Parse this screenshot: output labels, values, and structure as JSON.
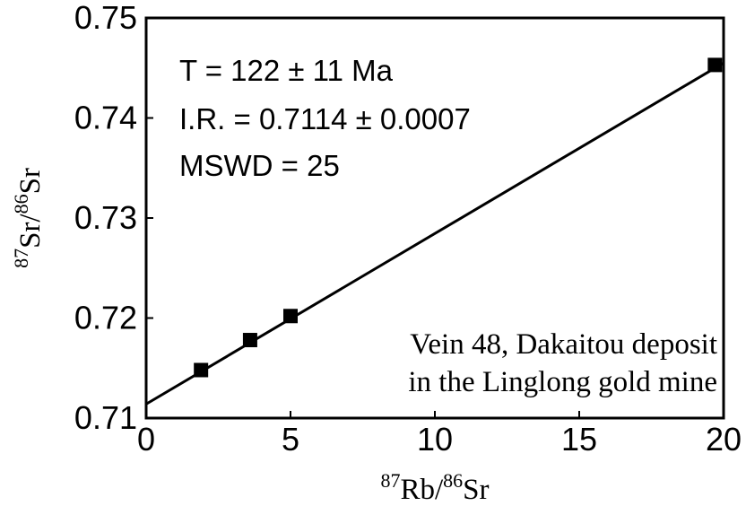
{
  "chart_data": {
    "type": "scatter",
    "xlabel": {
      "sup1": "87",
      "base1": "Rb/",
      "sup2": "86",
      "base2": "Sr"
    },
    "ylabel": {
      "sup1": "87",
      "base1": "Sr/",
      "sup2": "86",
      "base2": "Sr"
    },
    "xlim": [
      0,
      20
    ],
    "ylim": [
      0.71,
      0.75
    ],
    "x_ticks": [
      {
        "value": 0,
        "label": "0"
      },
      {
        "value": 5,
        "label": "5"
      },
      {
        "value": 10,
        "label": "10"
      },
      {
        "value": 15,
        "label": "15"
      },
      {
        "value": 20,
        "label": "20"
      }
    ],
    "y_ticks": [
      {
        "value": 0.71,
        "label": "0.71"
      },
      {
        "value": 0.72,
        "label": "0.72"
      },
      {
        "value": 0.73,
        "label": "0.73"
      },
      {
        "value": 0.74,
        "label": "0.74"
      },
      {
        "value": 0.75,
        "label": "0.75"
      }
    ],
    "points": [
      {
        "x": 1.9,
        "y": 0.7148
      },
      {
        "x": 3.6,
        "y": 0.7178
      },
      {
        "x": 5.0,
        "y": 0.7202
      },
      {
        "x": 19.7,
        "y": 0.7453
      }
    ],
    "isochron": {
      "x": [
        0,
        20
      ],
      "y": [
        0.7114,
        0.7455
      ]
    },
    "annotations": {
      "age": "T = 122 ± 11 Ma",
      "initial_ratio": "I.R. = 0.7114 ± 0.0007",
      "mswd": "MSWD = 25",
      "sample_line1": "Vein 48, Dakaitou deposit",
      "sample_line2": "in the Linglong gold mine"
    },
    "grid": false,
    "legend": "none"
  }
}
